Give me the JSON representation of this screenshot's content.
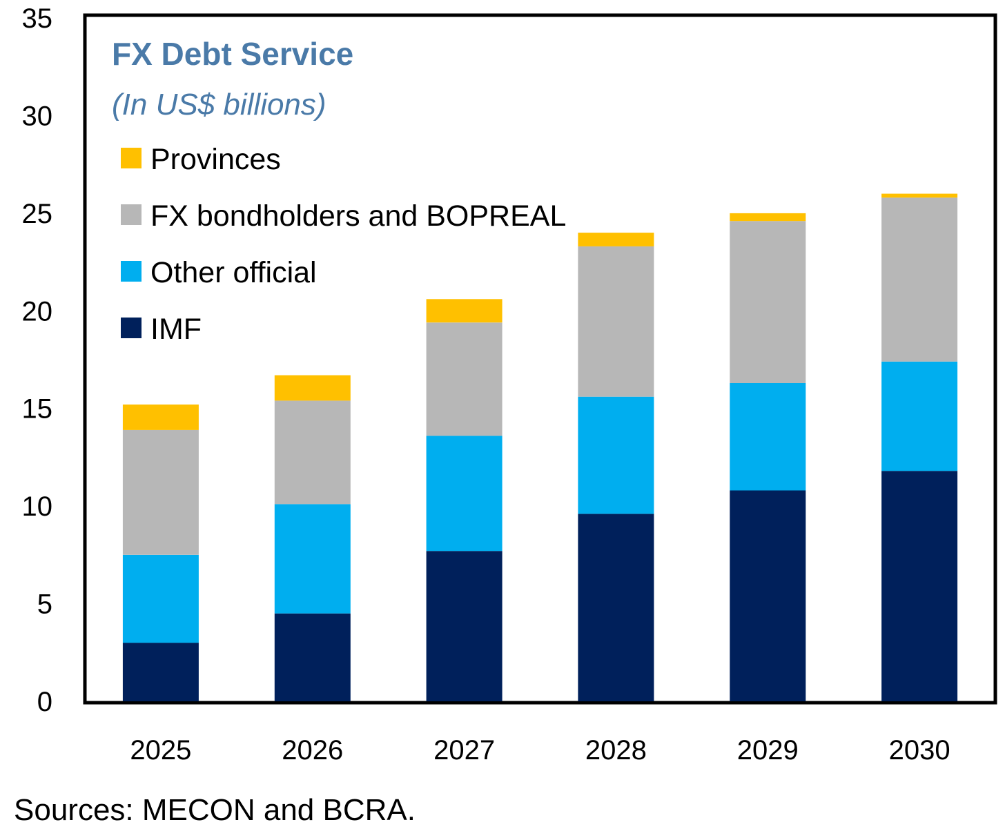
{
  "chart_data": {
    "type": "bar",
    "stacked": true,
    "title": "FX Debt Service",
    "subtitle": "(In US$ billions)",
    "categories": [
      "2025",
      "2026",
      "2027",
      "2028",
      "2029",
      "2030"
    ],
    "series": [
      {
        "name": "IMF",
        "color": "#00205b",
        "values": [
          3.0,
          4.5,
          7.7,
          9.6,
          10.8,
          11.8
        ]
      },
      {
        "name": "Other official",
        "color": "#00aeef",
        "values": [
          4.5,
          5.6,
          5.9,
          6.0,
          5.5,
          5.6
        ]
      },
      {
        "name": "FX bondholders and BOPREAL",
        "color": "#b7b7b7",
        "values": [
          6.4,
          5.3,
          5.8,
          7.7,
          8.3,
          8.4
        ]
      },
      {
        "name": "Provinces",
        "color": "#ffc000",
        "values": [
          1.3,
          1.3,
          1.2,
          0.7,
          0.4,
          0.2
        ]
      }
    ],
    "legend_order": [
      "Provinces",
      "FX bondholders and BOPREAL",
      "Other official",
      "IMF"
    ],
    "legend_position": "top-left",
    "ylim": [
      0,
      35
    ],
    "yticks": [
      0,
      5,
      10,
      15,
      20,
      25,
      30,
      35
    ],
    "xlabel": "",
    "ylabel": "",
    "grid": false
  },
  "footer": {
    "source": "Sources: MECON and BCRA."
  }
}
